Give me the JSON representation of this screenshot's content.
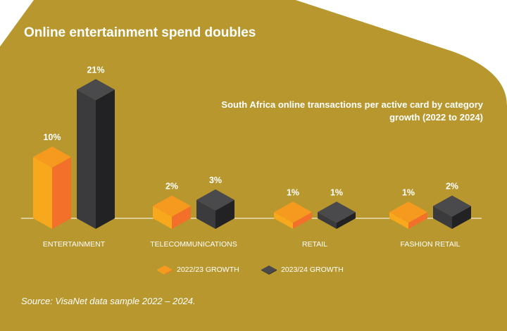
{
  "title": "Online entertainment spend doubles",
  "subtitle": "South Africa online transactions per active card by category growth (2022 to 2024)",
  "source": "Source: VisaNet data sample 2022 – 2024.",
  "colors": {
    "background_gold": "#B8982E",
    "series_2022_front": "#F7A81C",
    "series_2022_side": "#F2702A",
    "series_2022_top": "#F59A1E",
    "series_2024_front": "#3B3A3C",
    "series_2024_side": "#222123",
    "series_2024_top": "#4A494B"
  },
  "chart_data": {
    "type": "bar",
    "categories": [
      "ENTERTAINMENT",
      "TELECOMMUNICATIONS",
      "RETAIL",
      "FASHION RETAIL"
    ],
    "series": [
      {
        "name": "2022/23 GROWTH",
        "values": [
          10,
          2,
          1,
          1
        ],
        "labels": [
          "10%",
          "2%",
          "1%",
          "1%"
        ]
      },
      {
        "name": "2023/24 GROWTH",
        "values": [
          21,
          3,
          1,
          2
        ],
        "labels": [
          "21%",
          "3%",
          "1%",
          "2%"
        ]
      }
    ],
    "ylabel": "",
    "xlabel": "",
    "unit": "%"
  }
}
